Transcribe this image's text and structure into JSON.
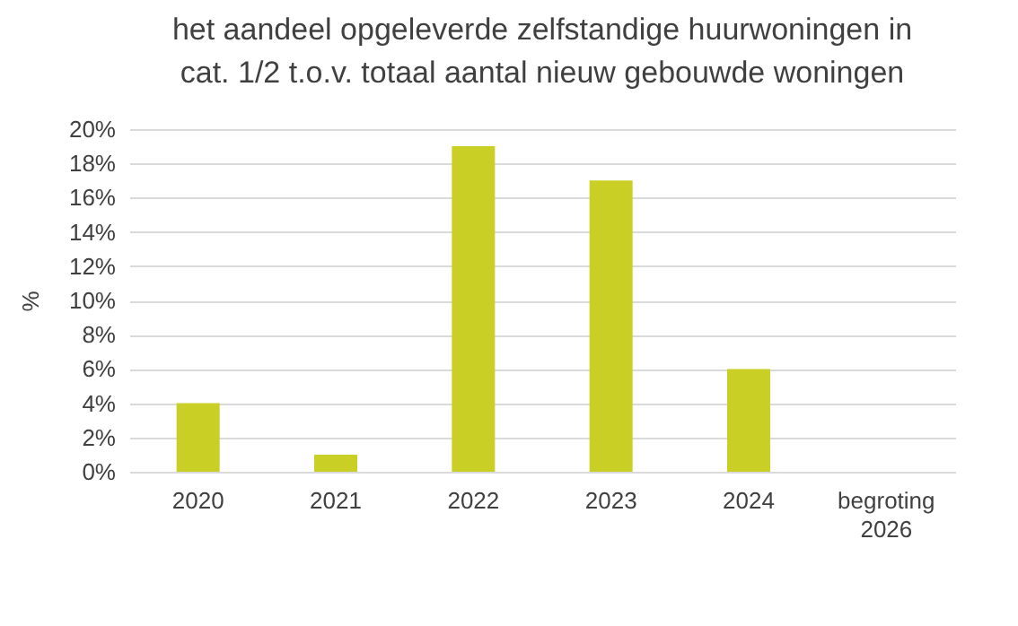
{
  "chart_data": {
    "type": "bar",
    "title": "het aandeel opgeleverde zelfstandige huurwoningen in cat. 1/2 t.o.v. totaal aantal nieuw gebouwde woningen",
    "ylabel": "%",
    "categories": [
      "2020",
      "2021",
      "2022",
      "2023",
      "2024",
      "begroting 2026"
    ],
    "values": [
      4,
      1,
      19,
      17,
      6,
      null
    ],
    "color": "#c9cf24",
    "ylim": [
      0,
      20
    ],
    "yticks": [
      {
        "value": 0,
        "label": "0%"
      },
      {
        "value": 2,
        "label": "2%"
      },
      {
        "value": 4,
        "label": "4%"
      },
      {
        "value": 6,
        "label": "6%"
      },
      {
        "value": 8,
        "label": "8%"
      },
      {
        "value": 10,
        "label": "10%"
      },
      {
        "value": 12,
        "label": "12%"
      },
      {
        "value": 14,
        "label": "14%"
      },
      {
        "value": 16,
        "label": "16%"
      },
      {
        "value": 18,
        "label": "18%"
      },
      {
        "value": 20,
        "label": "20%"
      }
    ],
    "grid": "y"
  }
}
